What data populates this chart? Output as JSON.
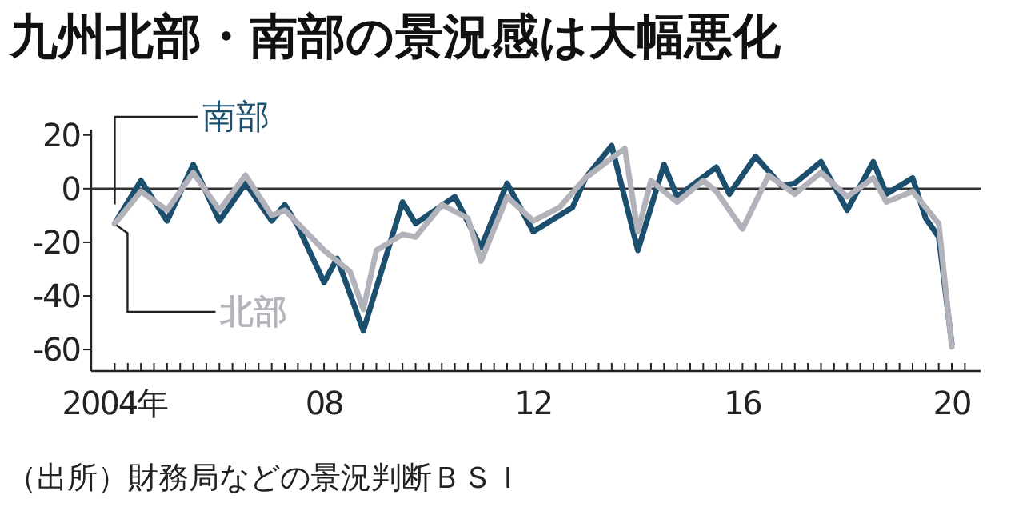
{
  "chart_data": {
    "type": "line",
    "title": "九州北部・南部の景況感は大幅悪化",
    "annotations": [
      "（出所）財務局などの景況判断ＢＳＩ"
    ],
    "xlim": [
      2003.55,
      2020.55
    ],
    "ylim": [
      -68,
      22
    ],
    "yticks": [
      20,
      0,
      -20,
      -40,
      -60
    ],
    "xticks": [
      {
        "value": 2004,
        "label": "2004年"
      },
      {
        "value": 2004.25,
        "label": null
      },
      {
        "value": 2004.5,
        "label": null
      },
      {
        "value": 2004.75,
        "label": null
      },
      {
        "value": 2005,
        "label": null
      },
      {
        "value": 2005.25,
        "label": null
      },
      {
        "value": 2005.5,
        "label": null
      },
      {
        "value": 2005.75,
        "label": null
      },
      {
        "value": 2006,
        "label": null
      },
      {
        "value": 2006.25,
        "label": null
      },
      {
        "value": 2006.5,
        "label": null
      },
      {
        "value": 2006.75,
        "label": null
      },
      {
        "value": 2007,
        "label": null
      },
      {
        "value": 2007.25,
        "label": null
      },
      {
        "value": 2007.5,
        "label": null
      },
      {
        "value": 2007.75,
        "label": null
      },
      {
        "value": 2008,
        "label": "08"
      },
      {
        "value": 2008.25,
        "label": null
      },
      {
        "value": 2008.5,
        "label": null
      },
      {
        "value": 2008.75,
        "label": null
      },
      {
        "value": 2009,
        "label": null
      },
      {
        "value": 2009.25,
        "label": null
      },
      {
        "value": 2009.5,
        "label": null
      },
      {
        "value": 2009.75,
        "label": null
      },
      {
        "value": 2010,
        "label": null
      },
      {
        "value": 2010.25,
        "label": null
      },
      {
        "value": 2010.5,
        "label": null
      },
      {
        "value": 2010.75,
        "label": null
      },
      {
        "value": 2011,
        "label": null
      },
      {
        "value": 2011.25,
        "label": null
      },
      {
        "value": 2011.5,
        "label": null
      },
      {
        "value": 2011.75,
        "label": null
      },
      {
        "value": 2012,
        "label": "12"
      },
      {
        "value": 2012.25,
        "label": null
      },
      {
        "value": 2012.5,
        "label": null
      },
      {
        "value": 2012.75,
        "label": null
      },
      {
        "value": 2013,
        "label": null
      },
      {
        "value": 2013.25,
        "label": null
      },
      {
        "value": 2013.5,
        "label": null
      },
      {
        "value": 2013.75,
        "label": null
      },
      {
        "value": 2014,
        "label": null
      },
      {
        "value": 2014.25,
        "label": null
      },
      {
        "value": 2014.5,
        "label": null
      },
      {
        "value": 2014.75,
        "label": null
      },
      {
        "value": 2015,
        "label": null
      },
      {
        "value": 2015.25,
        "label": null
      },
      {
        "value": 2015.5,
        "label": null
      },
      {
        "value": 2015.75,
        "label": null
      },
      {
        "value": 2016,
        "label": "16"
      },
      {
        "value": 2016.25,
        "label": null
      },
      {
        "value": 2016.5,
        "label": null
      },
      {
        "value": 2016.75,
        "label": null
      },
      {
        "value": 2017,
        "label": null
      },
      {
        "value": 2017.25,
        "label": null
      },
      {
        "value": 2017.5,
        "label": null
      },
      {
        "value": 2017.75,
        "label": null
      },
      {
        "value": 2018,
        "label": null
      },
      {
        "value": 2018.25,
        "label": null
      },
      {
        "value": 2018.5,
        "label": null
      },
      {
        "value": 2018.75,
        "label": null
      },
      {
        "value": 2019,
        "label": null
      },
      {
        "value": 2019.25,
        "label": null
      },
      {
        "value": 2019.5,
        "label": null
      },
      {
        "value": 2019.75,
        "label": null
      },
      {
        "value": 2020,
        "label": "20"
      },
      {
        "value": 2020.25,
        "label": null
      }
    ],
    "ref_lines": [
      {
        "axis": "y",
        "value": 0,
        "color": "#333333"
      }
    ],
    "series": [
      {
        "name": "南部",
        "color": "#1c4f6e",
        "x": [
          2004,
          2004.5,
          2005,
          2005.5,
          2006,
          2006.5,
          2007,
          2007.25,
          2007.5,
          2008,
          2008.25,
          2008.75,
          2009.5,
          2009.75,
          2010.5,
          2011,
          2011.5,
          2012,
          2012.75,
          2013,
          2013.5,
          2014,
          2014.5,
          2014.75,
          2015.5,
          2015.75,
          2016.25,
          2016.75,
          2017,
          2017.5,
          2018,
          2018.5,
          2018.75,
          2019.25,
          2019.5,
          2019.75,
          2020
        ],
        "values": [
          -13,
          3,
          -12,
          9,
          -12,
          2,
          -12,
          -6,
          -14,
          -35,
          -26,
          -53,
          -5,
          -13,
          -3,
          -22,
          2,
          -16,
          -7,
          4,
          16,
          -23,
          9,
          -3,
          8,
          -2,
          12,
          1,
          2,
          10,
          -8,
          10,
          -2,
          4,
          -11,
          -18,
          -58
        ]
      },
      {
        "name": "北部",
        "color": "#b2b3ba",
        "x": [
          2004,
          2004.5,
          2005,
          2005.5,
          2006,
          2006.5,
          2007,
          2007.25,
          2008,
          2008.5,
          2008.75,
          2009,
          2009.5,
          2009.75,
          2010.25,
          2010.75,
          2011,
          2011.5,
          2012,
          2012.5,
          2013,
          2013.75,
          2014,
          2014.25,
          2014.75,
          2015.25,
          2015.5,
          2016,
          2016.5,
          2017,
          2017.5,
          2018,
          2018.5,
          2018.75,
          2019.25,
          2019.75,
          2020
        ],
        "values": [
          -13,
          -1,
          -8,
          6,
          -8,
          5,
          -10,
          -8,
          -23,
          -31,
          -45,
          -23,
          -17,
          -18,
          -6,
          -11,
          -27,
          -3,
          -12,
          -7,
          4,
          15,
          -16,
          3,
          -5,
          3,
          -1,
          -15,
          5,
          -2,
          6,
          -3,
          4,
          -5,
          -1,
          -13,
          -59
        ]
      }
    ]
  }
}
